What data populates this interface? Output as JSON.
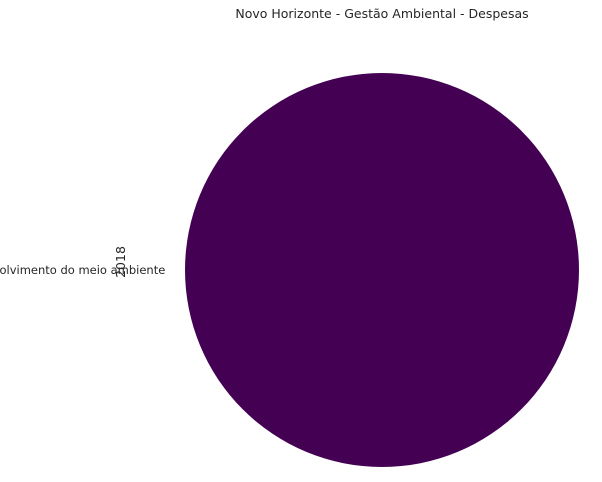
{
  "chart_data": {
    "type": "pie",
    "title": "Novo Horizonte - Gestão Ambiental - Despesas",
    "ylabel": "2018",
    "categories": [
      "desenvolvimento do meio ambiente"
    ],
    "values": [
      100
    ],
    "colors": [
      "#440154"
    ],
    "legend": "none",
    "grid": false
  }
}
